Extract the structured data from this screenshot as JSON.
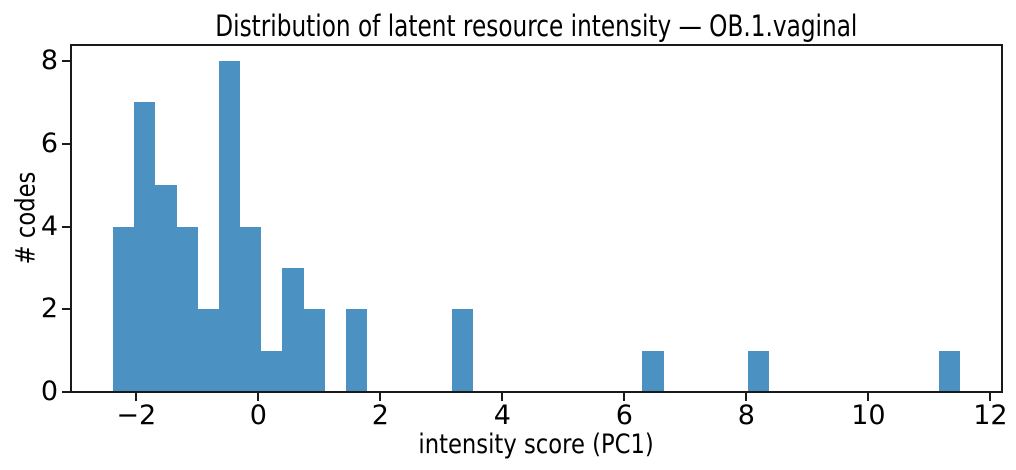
{
  "chart_data": {
    "type": "bar",
    "subtype": "histogram",
    "title": "Distribution of latent resource intensity — OB.1.vaginal",
    "xlabel": "intensity score (PC1)",
    "ylabel": "# codes",
    "bar_color": "#4b92c3",
    "bin_start": -2.38,
    "bin_width": 0.347,
    "counts": [
      4,
      7,
      5,
      4,
      2,
      8,
      4,
      1,
      3,
      2,
      0,
      2,
      0,
      0,
      0,
      0,
      2,
      0,
      0,
      0,
      0,
      0,
      0,
      0,
      0,
      1,
      0,
      0,
      0,
      0,
      1,
      0,
      0,
      0,
      0,
      0,
      0,
      0,
      0,
      1
    ],
    "xticks": [
      -2,
      0,
      2,
      4,
      6,
      8,
      10,
      12
    ],
    "yticks": [
      0,
      2,
      4,
      6,
      8
    ],
    "xlim": [
      -3.07,
      12.19
    ],
    "ylim": [
      0,
      8.4
    ],
    "grid": false,
    "legend_position": "none"
  }
}
